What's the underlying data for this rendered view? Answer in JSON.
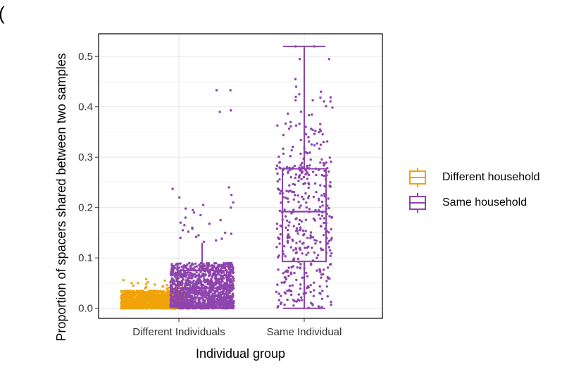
{
  "panel_label": "(",
  "colors": {
    "different_household": "#F0A30A",
    "same_household": "#8E44AD",
    "grid": "#E6E6E6",
    "panel_border": "#000000"
  },
  "chart_data": {
    "type": "box-jitter",
    "xlabel": "Individual group",
    "ylabel": "Proportion of spacers shared between two samples",
    "categories": [
      "Different Individuals",
      "Same Individual"
    ],
    "ylim": [
      -0.02,
      0.545
    ],
    "yticks": [
      0.0,
      0.1,
      0.2,
      0.3,
      0.4,
      0.5
    ],
    "ytick_labels": [
      "0.0",
      "0.1",
      "0.2",
      "0.3",
      "0.4",
      "0.5"
    ],
    "grid": true,
    "legend_position": "right",
    "series": [
      {
        "name": "Different household",
        "category": "Different Individuals",
        "box": {
          "min": 0.0,
          "q1": 0.0,
          "median": 0.0,
          "q3": 0.0,
          "max": 0.0
        },
        "n_points": 1600,
        "dense_max": 0.035,
        "outliers": [
          0.058,
          0.056,
          0.055,
          0.054,
          0.052,
          0.05,
          0.05,
          0.048,
          0.047,
          0.046,
          0.045,
          0.045,
          0.044,
          0.043,
          0.042,
          0.041,
          0.04,
          0.04,
          0.039,
          0.038
        ]
      },
      {
        "name": "Same household",
        "category": "Different Individuals",
        "box": {
          "min": 0.0,
          "q1": 0.006,
          "median": 0.04,
          "q3": 0.075,
          "max": 0.13
        },
        "n_points": 1400,
        "dense_max": 0.09,
        "outliers": [
          0.433,
          0.433,
          0.393,
          0.39,
          0.24,
          0.237,
          0.225,
          0.22,
          0.21,
          0.205,
          0.2,
          0.198,
          0.195,
          0.19,
          0.185,
          0.18,
          0.175,
          0.17,
          0.168,
          0.165,
          0.16,
          0.158,
          0.155,
          0.152,
          0.15,
          0.148,
          0.145,
          0.142,
          0.14,
          0.138,
          0.135,
          0.132
        ]
      },
      {
        "name": "Same household",
        "category": "Same Individual",
        "box": {
          "min": 0.0,
          "q1": 0.093,
          "median": 0.192,
          "q3": 0.277,
          "max": 0.52
        },
        "n_points": 420,
        "dense_max": 0.52,
        "outliers": [
          0.52,
          0.52,
          0.495,
          0.495,
          0.455,
          0.44,
          0.43,
          0.425,
          0.42
        ]
      }
    ]
  }
}
